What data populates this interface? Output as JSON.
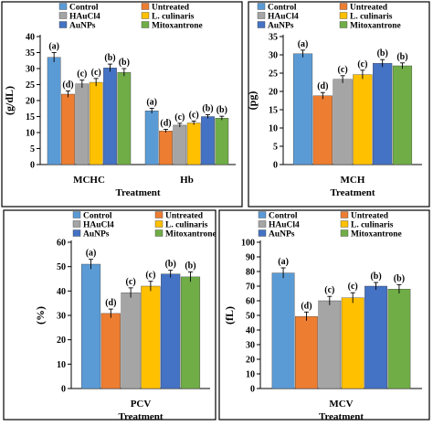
{
  "legend": {
    "entries": [
      {
        "name": "Control",
        "color": "#5b9bd5"
      },
      {
        "name": "Untreated",
        "color": "#ed7d31"
      },
      {
        "name": "HAuCl4",
        "color": "#a5a5a5"
      },
      {
        "name": "L. culinaris",
        "color": "#ffc000"
      },
      {
        "name": "AuNPs",
        "color": "#4472c4"
      },
      {
        "name": "Mitoxantrone",
        "color": "#70ad47"
      }
    ]
  },
  "chart_data": [
    {
      "type": "bar",
      "ylabel": "(g/dL)",
      "xlabel": "Treatment",
      "ylim": [
        0,
        40
      ],
      "yticks": [
        0,
        5,
        10,
        15,
        20,
        25,
        30,
        35,
        40
      ],
      "categories": [
        "MCHC",
        "Hb"
      ],
      "series": [
        {
          "name": "Control",
          "values": [
            33.5,
            16.8
          ],
          "errors": [
            1.5,
            0.8
          ],
          "letters": [
            "(a)",
            "(a)"
          ]
        },
        {
          "name": "Untreated",
          "values": [
            22.0,
            10.5
          ],
          "errors": [
            1.0,
            0.5
          ],
          "letters": [
            "(d)",
            "(d)"
          ]
        },
        {
          "name": "HAuCl4",
          "values": [
            25.2,
            12.3
          ],
          "errors": [
            1.2,
            0.6
          ],
          "letters": [
            "(c)",
            "(c)"
          ]
        },
        {
          "name": "L. culinaris",
          "values": [
            25.7,
            13.0
          ],
          "errors": [
            1.2,
            0.6
          ],
          "letters": [
            "(c)",
            "(c)"
          ]
        },
        {
          "name": "AuNPs",
          "values": [
            30.2,
            15.0
          ],
          "errors": [
            1.2,
            0.6
          ],
          "letters": [
            "(b)",
            "(b)"
          ]
        },
        {
          "name": "Mitoxantrone",
          "values": [
            28.8,
            14.5
          ],
          "errors": [
            1.2,
            0.6
          ],
          "letters": [
            "(b)",
            "(b)"
          ]
        }
      ]
    },
    {
      "type": "bar",
      "ylabel": "(pg)",
      "xlabel": "Treatment",
      "ylim": [
        0,
        35
      ],
      "yticks": [
        0,
        5,
        10,
        15,
        20,
        25,
        30,
        35
      ],
      "categories": [
        "MCH"
      ],
      "series": [
        {
          "name": "Control",
          "values": [
            30.3
          ],
          "errors": [
            1.0
          ],
          "letters": [
            "(a)"
          ]
        },
        {
          "name": "Untreated",
          "values": [
            18.8
          ],
          "errors": [
            0.9
          ],
          "letters": [
            "(d)"
          ]
        },
        {
          "name": "HAuCl4",
          "values": [
            23.3
          ],
          "errors": [
            1.0
          ],
          "letters": [
            "(c)"
          ]
        },
        {
          "name": "L. culinaris",
          "values": [
            24.6
          ],
          "errors": [
            1.2
          ],
          "letters": [
            "(c)"
          ]
        },
        {
          "name": "AuNPs",
          "values": [
            27.7
          ],
          "errors": [
            1.0
          ],
          "letters": [
            "(b)"
          ]
        },
        {
          "name": "Mitoxantrone",
          "values": [
            27.0
          ],
          "errors": [
            0.8
          ],
          "letters": [
            "(b)"
          ]
        }
      ]
    },
    {
      "type": "bar",
      "ylabel": "(%)",
      "xlabel": "Treatment",
      "ylim": [
        0,
        60
      ],
      "yticks": [
        0,
        10,
        20,
        30,
        40,
        50,
        60
      ],
      "categories": [
        "PCV"
      ],
      "series": [
        {
          "name": "Control",
          "values": [
            51.0
          ],
          "errors": [
            2.0
          ],
          "letters": [
            "(a)"
          ]
        },
        {
          "name": "Untreated",
          "values": [
            30.8
          ],
          "errors": [
            1.8
          ],
          "letters": [
            "(d)"
          ]
        },
        {
          "name": "HAuCl4",
          "values": [
            39.3
          ],
          "errors": [
            2.0
          ],
          "letters": [
            "(c)"
          ]
        },
        {
          "name": "L. culinaris",
          "values": [
            42.0
          ],
          "errors": [
            2.0
          ],
          "letters": [
            "(c)"
          ]
        },
        {
          "name": "AuNPs",
          "values": [
            47.0
          ],
          "errors": [
            1.5
          ],
          "letters": [
            "(b)"
          ]
        },
        {
          "name": "Mitoxantrone",
          "values": [
            45.8
          ],
          "errors": [
            2.0
          ],
          "letters": [
            "(b)"
          ]
        }
      ]
    },
    {
      "type": "bar",
      "ylabel": "(fL)",
      "xlabel": "Treatment",
      "ylim": [
        0,
        100
      ],
      "yticks": [
        0,
        10,
        20,
        30,
        40,
        50,
        60,
        70,
        80,
        90,
        100
      ],
      "categories": [
        "MCV"
      ],
      "series": [
        {
          "name": "Control",
          "values": [
            79.0
          ],
          "errors": [
            3.5
          ],
          "letters": [
            "(a)"
          ]
        },
        {
          "name": "Untreated",
          "values": [
            49.3
          ],
          "errors": [
            3.0
          ],
          "letters": [
            "(d)"
          ]
        },
        {
          "name": "HAuCl4",
          "values": [
            60.0
          ],
          "errors": [
            3.0
          ],
          "letters": [
            "(c)"
          ]
        },
        {
          "name": "L. culinaris",
          "values": [
            62.0
          ],
          "errors": [
            3.5
          ],
          "letters": [
            "(c)"
          ]
        },
        {
          "name": "AuNPs",
          "values": [
            70.0
          ],
          "errors": [
            2.5
          ],
          "letters": [
            "(b)"
          ]
        },
        {
          "name": "Mitoxantrone",
          "values": [
            68.0
          ],
          "errors": [
            3.0
          ],
          "letters": [
            "(b)"
          ]
        }
      ]
    }
  ]
}
